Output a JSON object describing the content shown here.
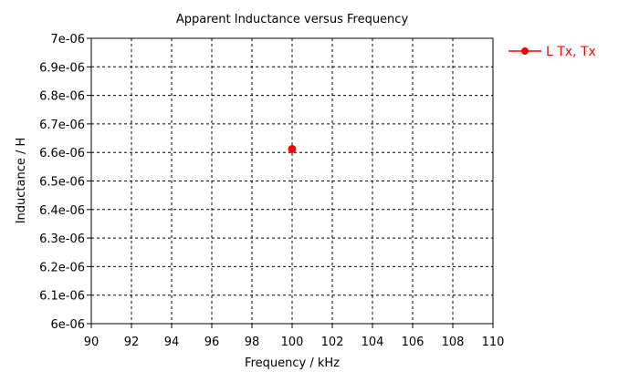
{
  "chart_data": {
    "type": "scatter",
    "title": "Apparent Inductance versus Frequency",
    "xlabel": "Frequency / kHz",
    "ylabel": "Inductance / H",
    "xlim": [
      90,
      110
    ],
    "ylim": [
      6e-06,
      7e-06
    ],
    "x_ticks": [
      "90",
      "92",
      "94",
      "96",
      "98",
      "100",
      "102",
      "104",
      "106",
      "108",
      "110"
    ],
    "y_ticks": [
      "6e-06",
      "6.1e-06",
      "6.2e-06",
      "6.3e-06",
      "6.4e-06",
      "6.5e-06",
      "6.6e-06",
      "6.7e-06",
      "6.8e-06",
      "6.9e-06",
      "7e-06"
    ],
    "grid": true,
    "legend_position": "right",
    "series": [
      {
        "name": "L Tx, Tx",
        "color": "#ff0000",
        "points": [
          {
            "x": 100,
            "y": 6.612e-06
          }
        ]
      }
    ]
  }
}
